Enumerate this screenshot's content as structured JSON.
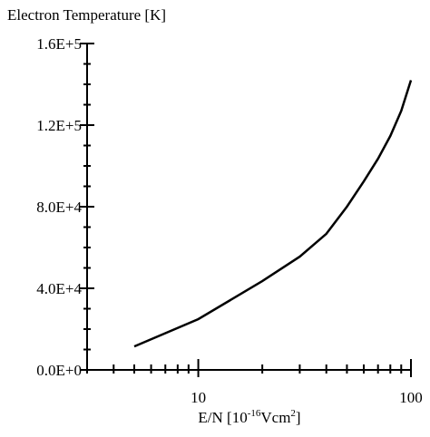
{
  "chart_data": {
    "type": "line",
    "title": "Electron Temperature [K]",
    "xlabel": [
      "E/N [10",
      "-16",
      "Vcm",
      "2",
      "]"
    ],
    "x_scale": "log",
    "xlim": [
      3,
      100
    ],
    "xticks": [
      10,
      100
    ],
    "xminor_ticks": [
      3,
      4,
      5,
      6,
      7,
      8,
      9,
      20,
      30,
      40,
      50,
      60,
      70,
      80,
      90
    ],
    "ylim": [
      0,
      160000
    ],
    "yticks": [
      {
        "value": 0,
        "label": "0.0E+0"
      },
      {
        "value": 40000,
        "label": "4.0E+4"
      },
      {
        "value": 80000,
        "label": "8.0E+4"
      },
      {
        "value": 120000,
        "label": "1.2E+5"
      },
      {
        "value": 160000,
        "label": "1.6E+5"
      }
    ],
    "yminor_ticks": [
      10000,
      20000,
      30000,
      50000,
      60000,
      70000,
      90000,
      100000,
      110000,
      130000,
      140000,
      150000
    ],
    "series": [
      {
        "color": "#000000",
        "x": [
          5,
          10,
          20,
          30,
          40,
          50,
          60,
          70,
          80,
          90,
          100
        ],
        "values": [
          11500,
          24900,
          43500,
          55500,
          66700,
          80000,
          92400,
          103500,
          114700,
          127000,
          142000
        ]
      }
    ]
  }
}
